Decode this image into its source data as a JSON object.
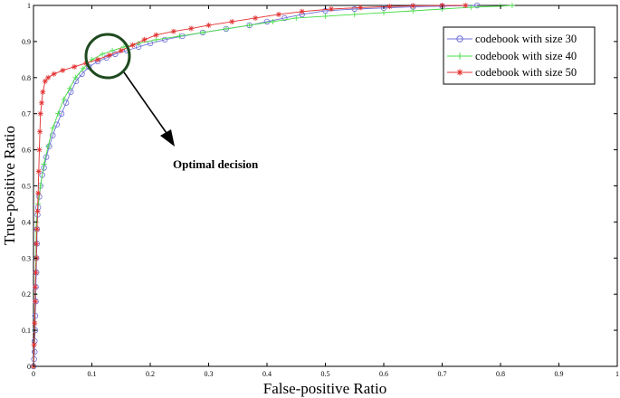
{
  "chart_data": {
    "type": "line",
    "xlabel": "False-positive Ratio",
    "ylabel": "True-positive Ratio",
    "xlim": [
      0,
      1
    ],
    "ylim": [
      0,
      1
    ],
    "x_ticks": [
      "0",
      "0.1",
      "0.2",
      "0.3",
      "0.4",
      "0.5",
      "0.6",
      "0.7",
      "0.8",
      "0.9",
      "1"
    ],
    "y_ticks": [
      "0",
      "0.1",
      "0.2",
      "0.3",
      "0.4",
      "0.5",
      "0.6",
      "0.7",
      "0.8",
      "0.9",
      "1"
    ],
    "grid": false,
    "legend_position": "top-right",
    "annotation": "Optimal decision",
    "series": [
      {
        "name": "codebook with size 30",
        "color": "#6f6fd8",
        "marker": "circle",
        "points": [
          [
            0.0,
            0.0
          ],
          [
            0.001,
            0.02
          ],
          [
            0.002,
            0.04
          ],
          [
            0.002,
            0.07
          ],
          [
            0.003,
            0.1
          ],
          [
            0.003,
            0.14
          ],
          [
            0.004,
            0.18
          ],
          [
            0.004,
            0.22
          ],
          [
            0.005,
            0.26
          ],
          [
            0.005,
            0.3
          ],
          [
            0.006,
            0.34
          ],
          [
            0.006,
            0.38
          ],
          [
            0.007,
            0.42
          ],
          [
            0.008,
            0.44
          ],
          [
            0.01,
            0.47
          ],
          [
            0.012,
            0.5
          ],
          [
            0.015,
            0.53
          ],
          [
            0.018,
            0.55
          ],
          [
            0.022,
            0.58
          ],
          [
            0.027,
            0.61
          ],
          [
            0.033,
            0.64
          ],
          [
            0.04,
            0.67
          ],
          [
            0.048,
            0.7
          ],
          [
            0.056,
            0.73
          ],
          [
            0.064,
            0.76
          ],
          [
            0.073,
            0.79
          ],
          [
            0.083,
            0.81
          ],
          [
            0.095,
            0.83
          ],
          [
            0.11,
            0.845
          ],
          [
            0.125,
            0.855
          ],
          [
            0.14,
            0.865
          ],
          [
            0.16,
            0.875
          ],
          [
            0.18,
            0.885
          ],
          [
            0.2,
            0.895
          ],
          [
            0.225,
            0.905
          ],
          [
            0.255,
            0.915
          ],
          [
            0.29,
            0.925
          ],
          [
            0.33,
            0.935
          ],
          [
            0.37,
            0.945
          ],
          [
            0.4,
            0.955
          ],
          [
            0.43,
            0.965
          ],
          [
            0.46,
            0.975
          ],
          [
            0.5,
            0.985
          ],
          [
            0.55,
            0.99
          ],
          [
            0.6,
            0.993
          ],
          [
            0.65,
            0.996
          ],
          [
            0.7,
            0.998
          ],
          [
            0.76,
            1.0
          ]
        ]
      },
      {
        "name": "codebook with size 40",
        "color": "#44dd44",
        "marker": "plus",
        "points": [
          [
            0.0,
            0.0
          ],
          [
            0.002,
            0.1
          ],
          [
            0.003,
            0.2
          ],
          [
            0.004,
            0.3
          ],
          [
            0.005,
            0.4
          ],
          [
            0.008,
            0.45
          ],
          [
            0.012,
            0.5
          ],
          [
            0.018,
            0.56
          ],
          [
            0.025,
            0.61
          ],
          [
            0.033,
            0.66
          ],
          [
            0.042,
            0.7
          ],
          [
            0.052,
            0.74
          ],
          [
            0.062,
            0.77
          ],
          [
            0.072,
            0.8
          ],
          [
            0.085,
            0.825
          ],
          [
            0.1,
            0.85
          ],
          [
            0.118,
            0.865
          ],
          [
            0.135,
            0.875
          ],
          [
            0.155,
            0.885
          ],
          [
            0.18,
            0.895
          ],
          [
            0.21,
            0.905
          ],
          [
            0.25,
            0.915
          ],
          [
            0.29,
            0.925
          ],
          [
            0.33,
            0.935
          ],
          [
            0.37,
            0.945
          ],
          [
            0.41,
            0.955
          ],
          [
            0.45,
            0.965
          ],
          [
            0.5,
            0.97
          ],
          [
            0.55,
            0.975
          ],
          [
            0.6,
            0.98
          ],
          [
            0.65,
            0.985
          ],
          [
            0.7,
            0.99
          ],
          [
            0.75,
            0.995
          ],
          [
            0.8,
            0.998
          ],
          [
            0.82,
            1.0
          ]
        ]
      },
      {
        "name": "codebook with size 50",
        "color": "#e23030",
        "marker": "star",
        "points": [
          [
            0.0,
            0.0
          ],
          [
            0.001,
            0.06
          ],
          [
            0.002,
            0.12
          ],
          [
            0.003,
            0.18
          ],
          [
            0.003,
            0.22
          ],
          [
            0.004,
            0.26
          ],
          [
            0.005,
            0.3
          ],
          [
            0.005,
            0.34
          ],
          [
            0.006,
            0.38
          ],
          [
            0.007,
            0.43
          ],
          [
            0.008,
            0.48
          ],
          [
            0.009,
            0.54
          ],
          [
            0.01,
            0.6
          ],
          [
            0.011,
            0.65
          ],
          [
            0.012,
            0.7
          ],
          [
            0.014,
            0.73
          ],
          [
            0.016,
            0.76
          ],
          [
            0.02,
            0.79
          ],
          [
            0.025,
            0.8
          ],
          [
            0.035,
            0.81
          ],
          [
            0.05,
            0.82
          ],
          [
            0.07,
            0.83
          ],
          [
            0.09,
            0.84
          ],
          [
            0.11,
            0.85
          ],
          [
            0.13,
            0.862
          ],
          [
            0.15,
            0.875
          ],
          [
            0.17,
            0.89
          ],
          [
            0.19,
            0.905
          ],
          [
            0.21,
            0.918
          ],
          [
            0.24,
            0.928
          ],
          [
            0.27,
            0.936
          ],
          [
            0.3,
            0.945
          ],
          [
            0.34,
            0.955
          ],
          [
            0.38,
            0.965
          ],
          [
            0.42,
            0.975
          ],
          [
            0.46,
            0.983
          ],
          [
            0.51,
            0.99
          ],
          [
            0.56,
            0.994
          ],
          [
            0.61,
            0.997
          ],
          [
            0.65,
            0.999
          ],
          [
            0.7,
            1.0
          ],
          [
            0.74,
            1.0
          ]
        ]
      }
    ]
  }
}
